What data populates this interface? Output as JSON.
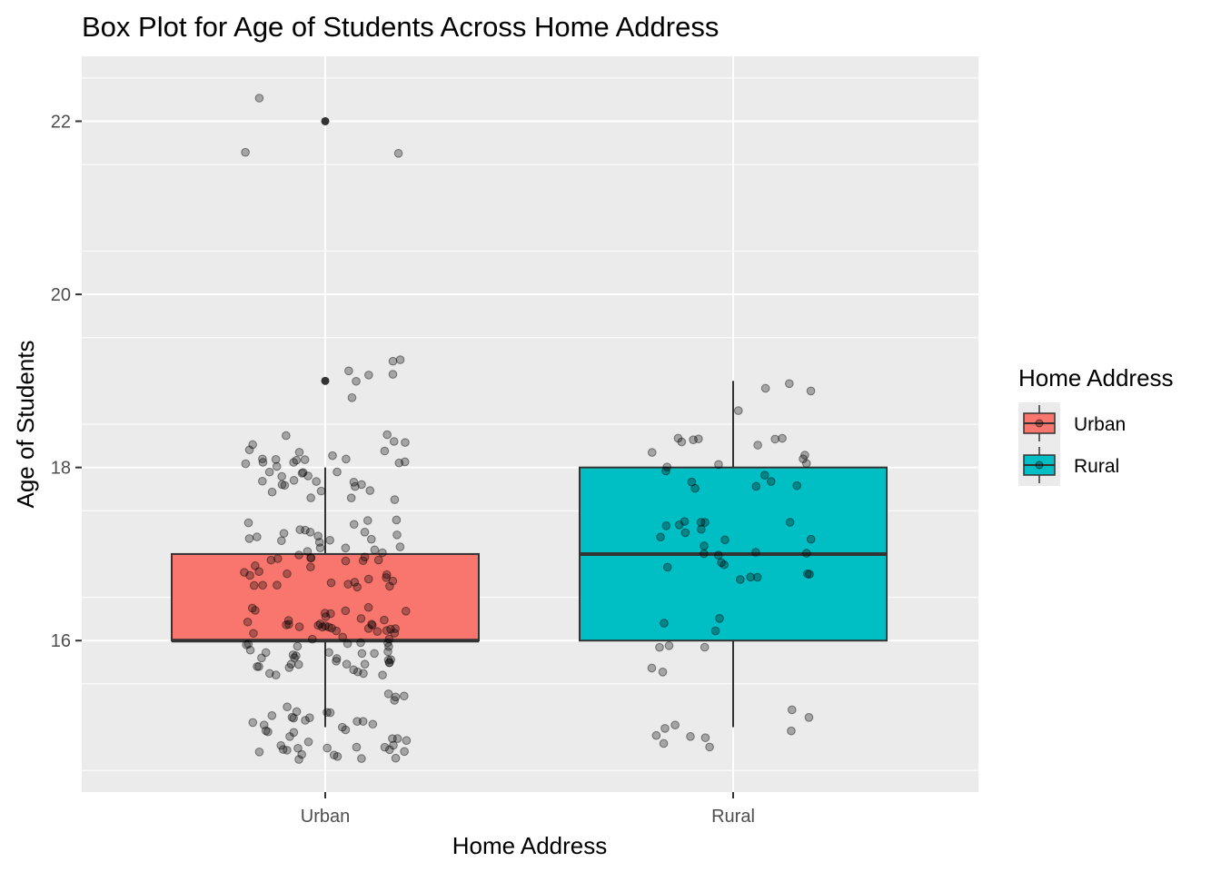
{
  "chart_data": {
    "type": "box",
    "title": "Box Plot for Age of Students Across Home Address",
    "xlabel": "Home Address",
    "ylabel": "Age of Students",
    "categories": [
      "Urban",
      "Rural"
    ],
    "ylim": [
      14.25,
      22.75
    ],
    "y_ticks": [
      16,
      18,
      20,
      22
    ],
    "grid": true,
    "legend": {
      "title": "Home Address",
      "position": "right",
      "entries": [
        {
          "label": "Urban",
          "color": "#F8766D"
        },
        {
          "label": "Rural",
          "color": "#00BFC4"
        }
      ]
    },
    "boxes": [
      {
        "category": "Urban",
        "color": "#F8766D",
        "q1": 16,
        "median": 16,
        "q3": 17,
        "whisker_low": 15,
        "whisker_high": 18,
        "outliers": [
          19,
          22
        ]
      },
      {
        "category": "Rural",
        "color": "#00BFC4",
        "q1": 16,
        "median": 17,
        "q3": 18,
        "whisker_low": 15,
        "whisker_high": 19,
        "outliers": []
      }
    ],
    "jitter_points": [
      {
        "category": "Urban",
        "values": [
          22,
          22,
          22,
          19,
          19,
          15,
          15,
          15,
          15,
          15,
          15,
          15,
          15,
          15,
          15,
          15,
          15,
          15,
          15,
          15,
          15,
          15,
          15,
          15,
          15,
          15,
          15,
          15,
          15,
          15,
          15,
          15,
          15,
          15,
          15,
          15,
          15,
          15,
          15,
          15,
          15,
          15,
          15,
          15,
          15,
          15,
          15,
          15,
          15,
          15,
          16,
          16,
          16,
          16,
          16,
          16,
          16,
          16,
          16,
          16,
          16,
          16,
          16,
          16,
          16,
          16,
          16,
          16,
          16,
          16,
          16,
          16,
          16,
          16,
          16,
          16,
          16,
          16,
          16,
          16,
          16,
          16,
          16,
          16,
          16,
          16,
          16,
          16,
          16,
          16,
          16,
          16,
          16,
          16,
          16,
          16,
          16,
          16,
          16,
          16,
          16,
          16,
          16,
          16,
          16,
          16,
          16,
          16,
          16,
          16,
          16,
          16,
          16,
          16,
          16,
          16,
          16,
          16,
          16,
          16,
          17,
          17,
          17,
          17,
          17,
          17,
          17,
          17,
          17,
          17,
          17,
          17,
          17,
          17,
          17,
          17,
          17,
          17,
          17,
          17,
          17,
          17,
          17,
          17,
          17,
          17,
          17,
          17,
          17,
          17,
          17,
          17,
          17,
          17,
          17,
          17,
          17,
          17,
          17,
          17,
          17,
          17,
          17,
          17,
          17,
          17,
          17,
          17,
          17,
          17,
          18,
          18,
          18,
          18,
          18,
          18,
          18,
          18,
          18,
          18,
          18,
          18,
          18,
          18,
          18,
          18,
          18,
          18,
          18,
          18,
          18,
          18,
          18,
          18,
          18,
          18,
          18,
          18,
          18,
          18,
          18,
          18,
          18,
          18,
          18,
          18,
          18,
          18,
          18,
          18,
          19,
          19,
          19,
          19,
          19
        ]
      },
      {
        "category": "Rural",
        "values": [
          19,
          19,
          19,
          19,
          15,
          15,
          15,
          15,
          15,
          15,
          15,
          15,
          15,
          15,
          16,
          16,
          16,
          16,
          16,
          16,
          16,
          16,
          17,
          17,
          17,
          17,
          17,
          17,
          17,
          17,
          17,
          17,
          17,
          17,
          17,
          17,
          17,
          17,
          17,
          17,
          17,
          17,
          17,
          17,
          17,
          17,
          18,
          18,
          18,
          18,
          18,
          18,
          18,
          18,
          18,
          18,
          18,
          18,
          18,
          18,
          18,
          18,
          18,
          18,
          18,
          18
        ]
      }
    ],
    "colors": {
      "panel": "#EBEBEB",
      "grid_major": "#FFFFFF",
      "point": "#000000",
      "box_line": "#333333"
    }
  }
}
